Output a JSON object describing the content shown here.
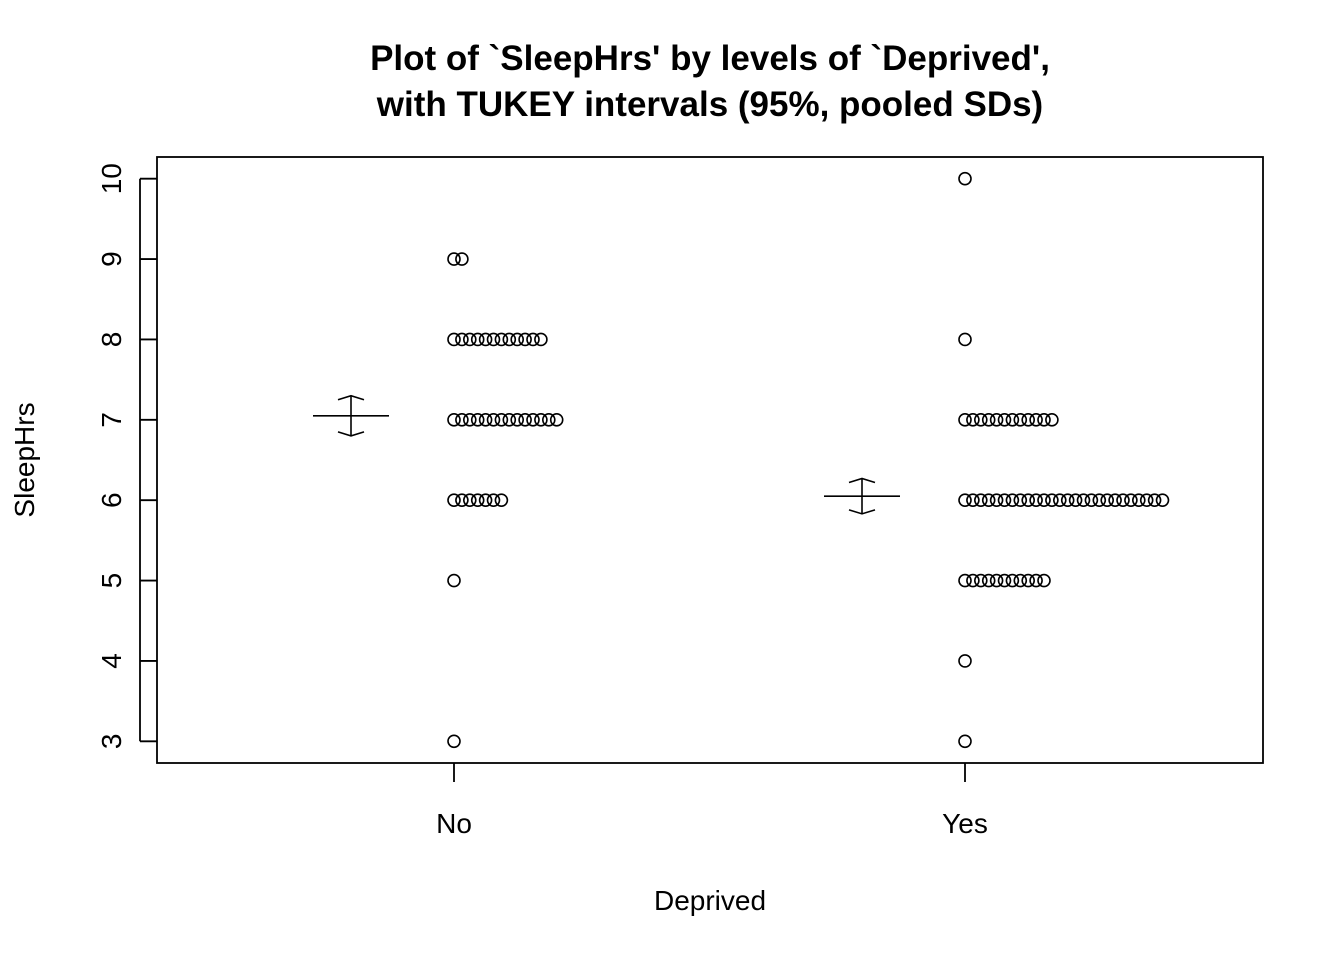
{
  "chart_data": {
    "type": "scatter",
    "title": [
      "Plot of `SleepHrs' by levels of `Deprived',",
      "with TUKEY intervals (95%, pooled SDs)"
    ],
    "xlabel": "Deprived",
    "ylabel": "SleepHrs",
    "categories": [
      "No",
      "Yes"
    ],
    "ylim": [
      2.73,
      10.27
    ],
    "yticks": [
      3,
      4,
      5,
      6,
      7,
      8,
      9,
      10
    ],
    "grid": false,
    "points": {
      "No": [
        {
          "y": 9,
          "count": 2
        },
        {
          "y": 8,
          "count": 12
        },
        {
          "y": 7,
          "count": 14
        },
        {
          "y": 6,
          "count": 7
        },
        {
          "y": 5,
          "count": 1
        },
        {
          "y": 3,
          "count": 1
        }
      ],
      "Yes": [
        {
          "y": 10,
          "count": 1
        },
        {
          "y": 8,
          "count": 1
        },
        {
          "y": 7,
          "count": 12
        },
        {
          "y": 6,
          "count": 26
        },
        {
          "y": 5,
          "count": 11
        },
        {
          "y": 4,
          "count": 1
        },
        {
          "y": 3,
          "count": 1
        }
      ]
    },
    "intervals": [
      {
        "category": "No",
        "mean": 7.05,
        "lower": 6.8,
        "upper": 7.3
      },
      {
        "category": "Yes",
        "mean": 6.05,
        "lower": 5.83,
        "upper": 6.27
      }
    ]
  }
}
